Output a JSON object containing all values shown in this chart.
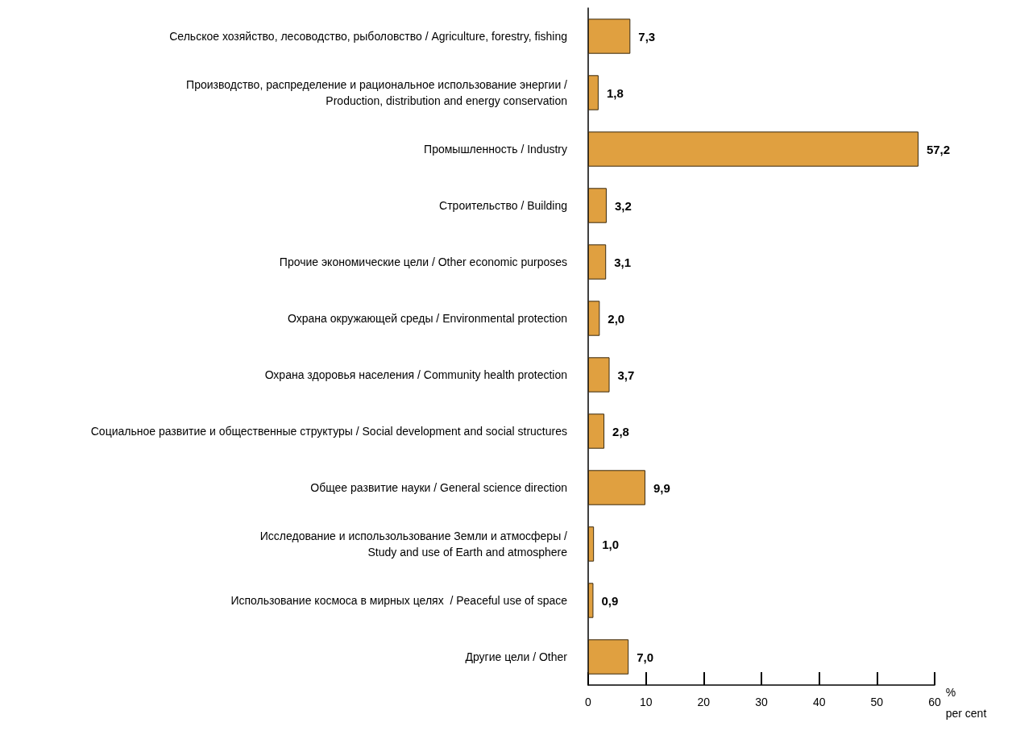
{
  "chart_data": {
    "type": "bar",
    "orientation": "horizontal",
    "categories": [
      "Сельское хозяйство, лесоводство, рыболовство / Agriculture, forestry, fishing",
      "Производство, распределение и рациональное использование энергии /\nProduction, distribution and energy conservation",
      "Промышленность / Industry",
      "Строительство / Building",
      "Прочие экономические цели / Other economic purposes",
      "Охрана окружающей среды / Environmental protection",
      "Охрана здоровья населения / Community health protection",
      "Социальное развитие и общественные структуры / Social development and social structures",
      "Общее развитие науки / General science direction",
      "Исследование и использользование Земли и атмосферы /\nStudy and use of Earth and atmosphere",
      "Использование космоса в мирных целях  / Peaceful use of space",
      "Другие цели / Other"
    ],
    "values": [
      7.3,
      1.8,
      57.2,
      3.2,
      3.1,
      2.0,
      3.7,
      2.8,
      9.9,
      1.0,
      0.9,
      7.0
    ],
    "value_labels": [
      "7,3",
      "1,8",
      "57,2",
      "3,2",
      "3,1",
      "2,0",
      "3,7",
      "2,8",
      "9,9",
      "1,0",
      "0,9",
      "7,0"
    ],
    "color": "#e0a040",
    "xlabel": "%\nper cent",
    "xlim": [
      0,
      60
    ],
    "xticks": [
      0,
      10,
      20,
      30,
      40,
      50,
      60
    ]
  }
}
